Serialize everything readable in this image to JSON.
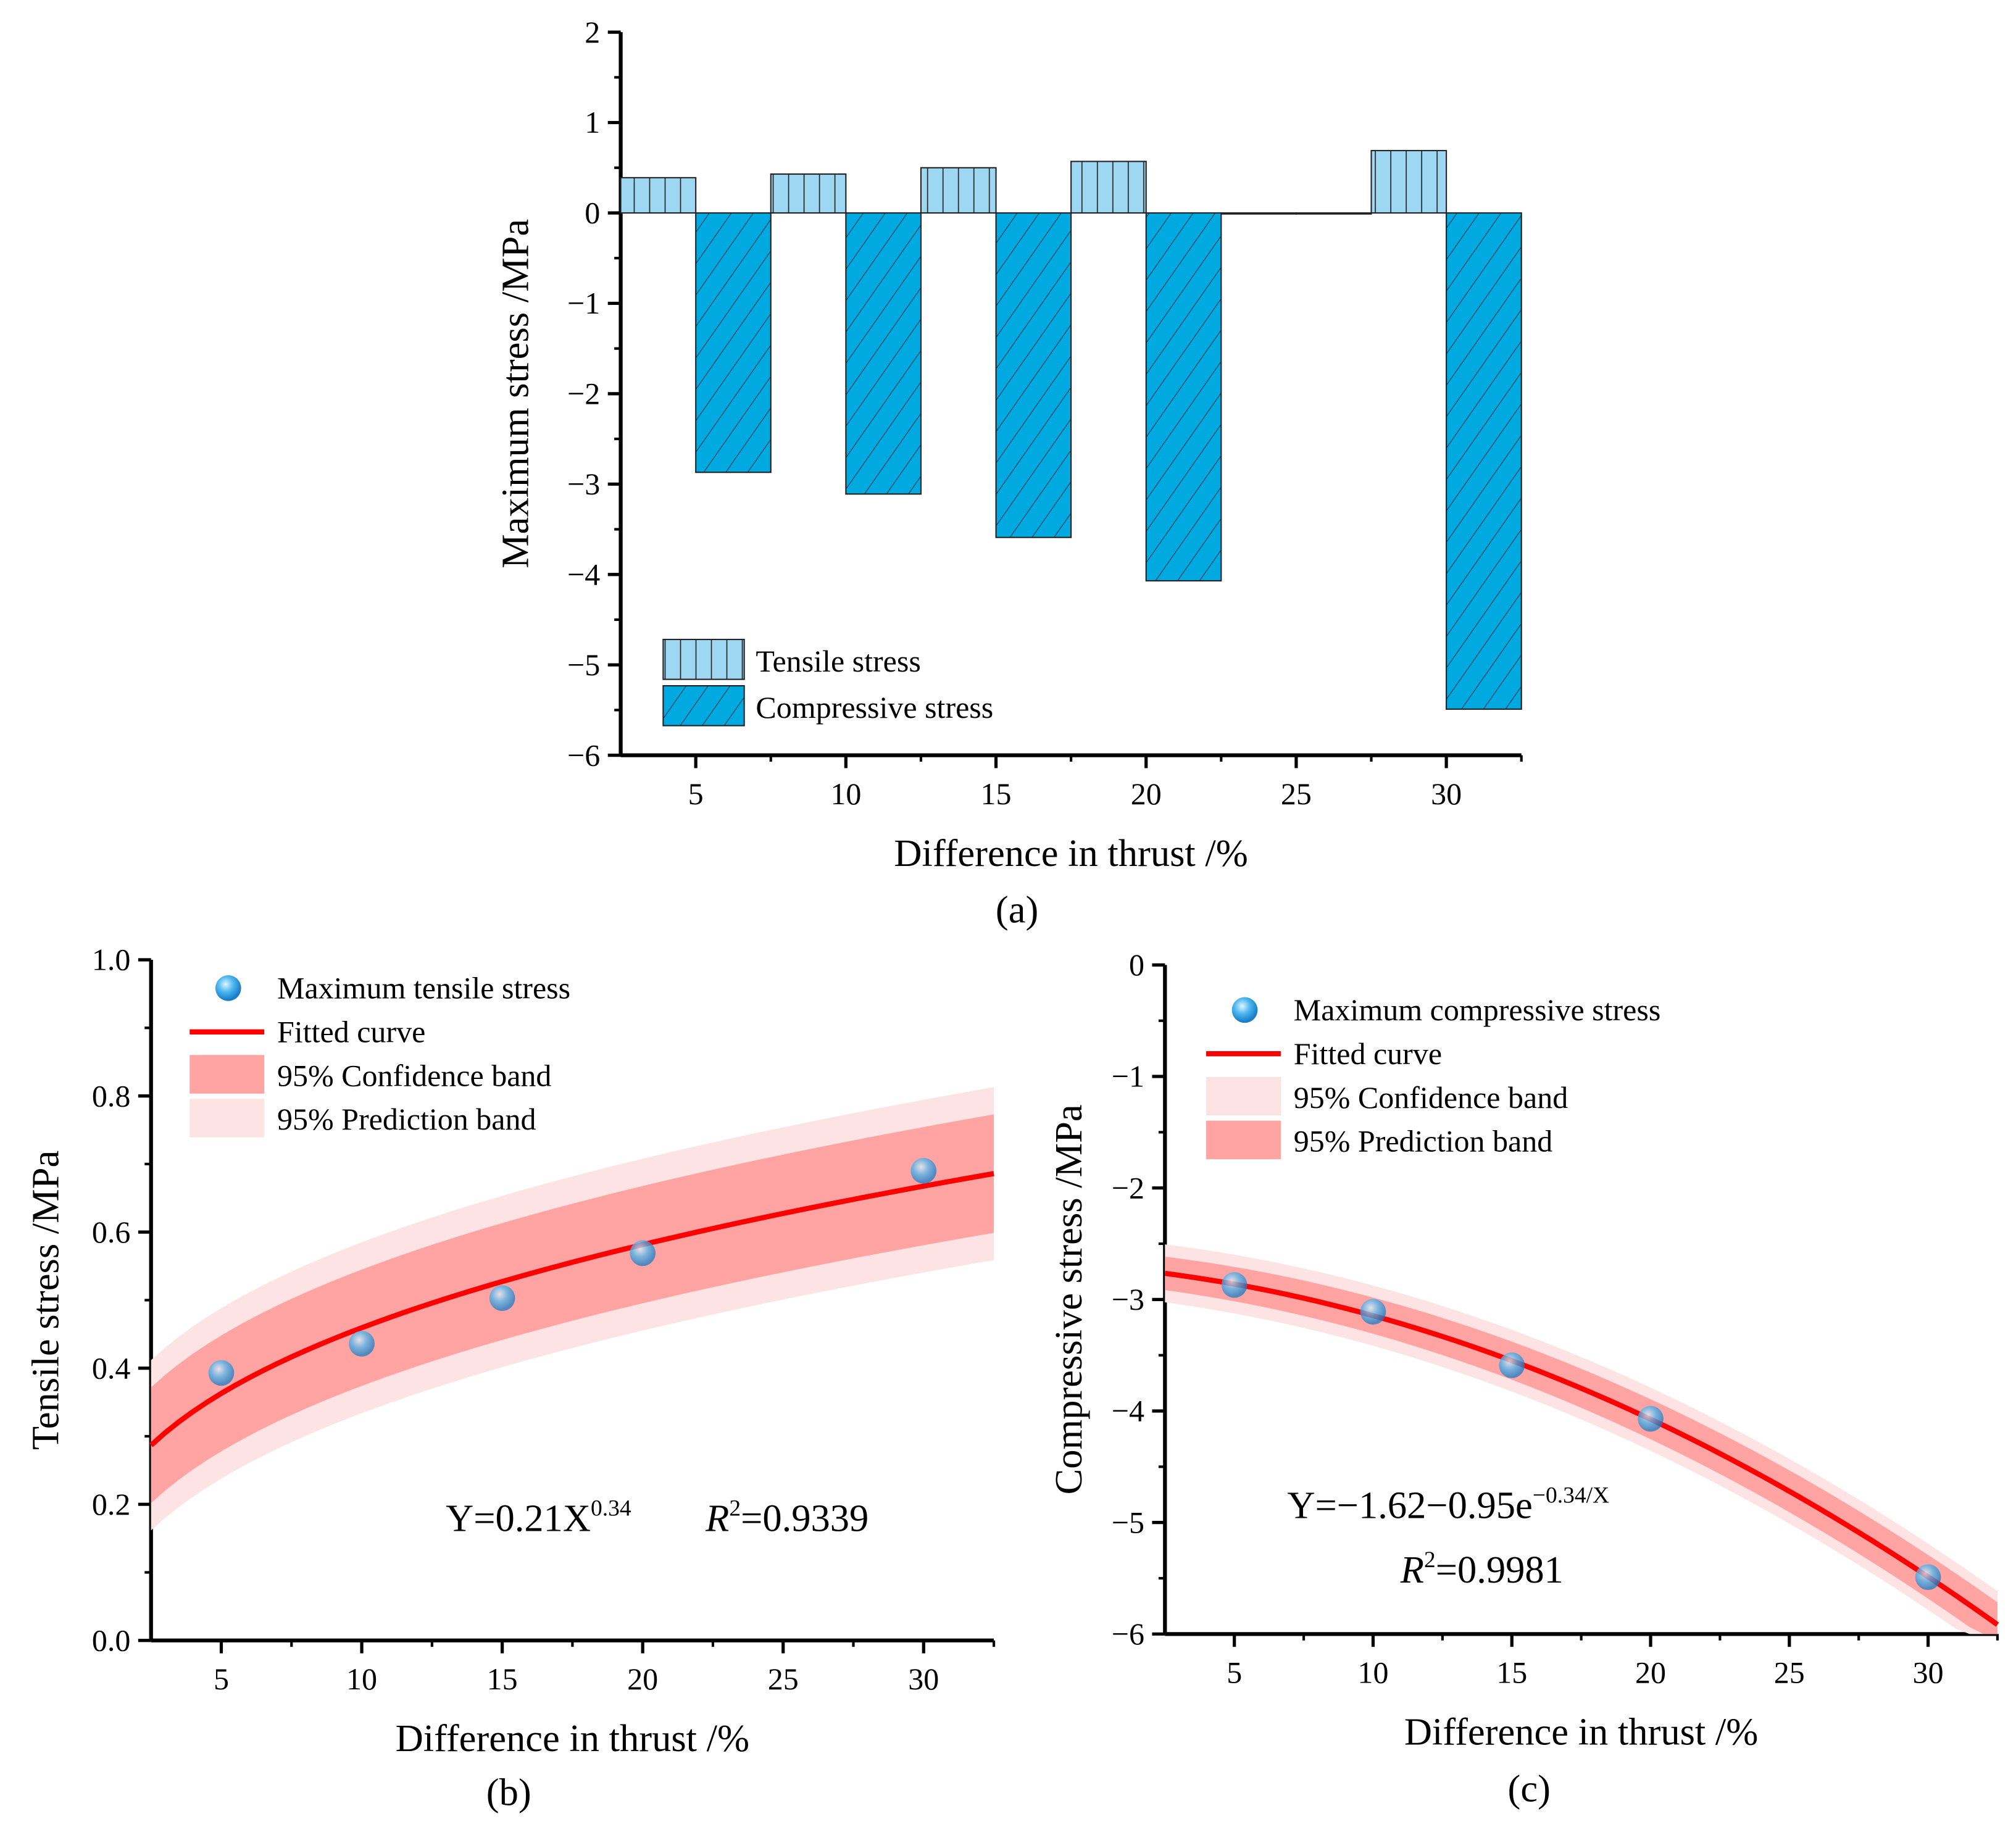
{
  "chart_data": [
    {
      "type": "bar",
      "panel_label": "(a)",
      "xlabel": "Difference in thrust /%",
      "ylabel": "Maximum stress /MPa",
      "categories": [
        5,
        10,
        15,
        20,
        25,
        30
      ],
      "xlim": [
        2.5,
        32.5
      ],
      "ylim": [
        -6,
        2
      ],
      "yticks": [
        2,
        1,
        0,
        -1,
        -2,
        -3,
        -4,
        -5,
        -6
      ],
      "ytick_labels": [
        "2",
        "1",
        "0",
        "−1",
        "−2",
        "−3",
        "−4",
        "−5",
        "−6"
      ],
      "xticks": [
        5,
        10,
        15,
        20,
        25,
        30
      ],
      "legend_position": "bottom-left",
      "series": [
        {
          "name": "Tensile stress",
          "values": [
            0.39,
            0.43,
            0.5,
            0.57,
            0,
            0.69
          ],
          "color": "#9dd7f1",
          "pattern": "vertical"
        },
        {
          "name": "Compressive stress",
          "values": [
            -2.87,
            -3.11,
            -3.59,
            -4.07,
            0,
            -5.49
          ],
          "color": "#00a9e0",
          "pattern": "diagonal"
        }
      ]
    },
    {
      "type": "scatter",
      "panel_label": "(b)",
      "xlabel": "Difference in thrust /%",
      "ylabel": "Tensile stress /MPa",
      "xlim": [
        2.5,
        32.5
      ],
      "ylim": [
        0,
        1.0
      ],
      "xticks": [
        5,
        10,
        15,
        20,
        25,
        30
      ],
      "yticks": [
        0.0,
        0.2,
        0.4,
        0.6,
        0.8,
        1.0
      ],
      "ytick_labels": [
        "0.0",
        "0.2",
        "0.4",
        "0.6",
        "0.8",
        "1.0"
      ],
      "points": {
        "name": "Maximum tensile stress",
        "x": [
          5,
          10,
          15,
          20,
          30
        ],
        "y": [
          0.393,
          0.436,
          0.503,
          0.569,
          0.69
        ]
      },
      "fit": {
        "name": "Fitted curve",
        "a": 0.21,
        "b": 0.34,
        "color": "#ff0000"
      },
      "bands": [
        {
          "name": "95% Confidence band",
          "color": "#ffa3a3",
          "half_width_start": 0.085,
          "half_width_end": 0.087
        },
        {
          "name": "95% Prediction band",
          "color": "#fde3e3",
          "half_width_start": 0.125,
          "half_width_end": 0.127
        }
      ],
      "equation": "Y=0.21X",
      "equation_exp": "0.34",
      "r2_label": "R",
      "r2_value": "=0.9339",
      "legend_position": "top-left"
    },
    {
      "type": "scatter",
      "panel_label": "(c)",
      "xlabel": "Difference in thrust /%",
      "ylabel": "Compressive stress /MPa",
      "xlim": [
        2.5,
        32.5
      ],
      "ylim": [
        -6,
        0
      ],
      "xticks": [
        5,
        10,
        15,
        20,
        25,
        30
      ],
      "yticks": [
        0,
        -1,
        -2,
        -3,
        -4,
        -5,
        -6
      ],
      "ytick_labels": [
        "0",
        "−1",
        "−2",
        "−3",
        "−4",
        "−5",
        "−6"
      ],
      "points": {
        "name": "Maximum compressive stress",
        "x": [
          5,
          10,
          15,
          20,
          30
        ],
        "y": [
          -2.87,
          -3.11,
          -3.59,
          -4.07,
          -5.49
        ]
      },
      "fit": {
        "name": "Fitted curve",
        "color": "#ff0000"
      },
      "bands": [
        {
          "name": "95% Confidence band",
          "color": "#fde3e3",
          "half_width_start": 0.26,
          "half_width_end": 0.3
        },
        {
          "name": "95% Prediction band",
          "color": "#ffa3a3",
          "half_width_start": 0.15,
          "half_width_end": 0.2
        }
      ],
      "equation": "Y=−1.62−0.95e",
      "equation_exp": "−0.34/X",
      "r2_label": "R",
      "r2_value": "=0.9981",
      "legend_position": "top-left"
    }
  ]
}
